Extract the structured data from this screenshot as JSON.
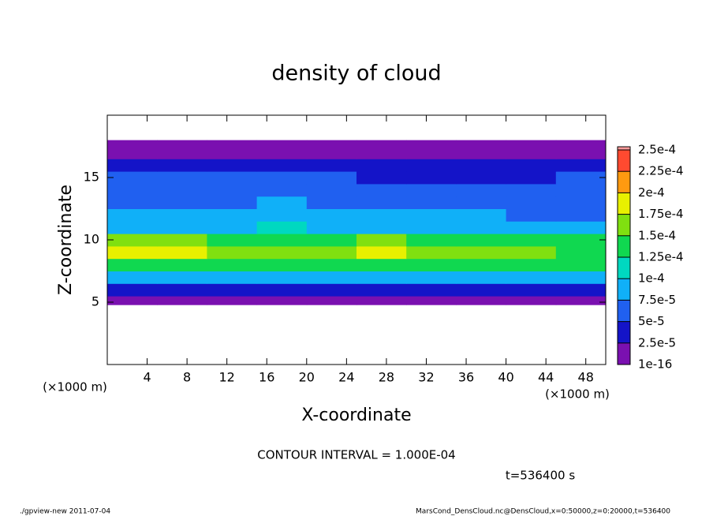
{
  "chart_data": {
    "type": "heatmap",
    "title": "density of cloud",
    "xlabel": "X-coordinate",
    "ylabel": "Z-coordinate",
    "xunits": "(×1000 m)",
    "yunits": "(×1000 m)",
    "annotation": "CONTOUR INTERVAL = 1.000E-04",
    "time_label": "t=536400 s",
    "footer_left": "./gpview-new   2011-07-04",
    "footer_right": "MarsCond_DensCloud.nc@DensCloud,x=0:50000,z=0:20000,t=536400",
    "xlim": [
      0,
      50
    ],
    "ylim": [
      0,
      20
    ],
    "xticks": [
      4,
      8,
      12,
      16,
      20,
      24,
      28,
      32,
      36,
      40,
      44,
      48
    ],
    "yticks": [
      5,
      10,
      15
    ],
    "xbins": [
      0,
      5,
      10,
      15,
      20,
      25,
      30,
      35,
      40,
      45,
      50
    ],
    "ybins": [
      4.8,
      5.5,
      6.5,
      7.5,
      8.5,
      9.5,
      10.5,
      11.5,
      12.5,
      13.5,
      14.5,
      15.5,
      16.5,
      17.5,
      18
    ],
    "values": [
      [
        1e-05,
        1e-05,
        1e-05,
        1e-05,
        1e-05,
        1e-05,
        1e-05,
        1e-05,
        1e-05,
        1e-05
      ],
      [
        4e-05,
        4e-05,
        3.5e-05,
        4e-05,
        4e-05,
        3.5e-05,
        3.5e-05,
        3.5e-05,
        4e-05,
        3e-05
      ],
      [
        9e-05,
        9e-05,
        8.5e-05,
        9e-05,
        9.5e-05,
        9e-05,
        9e-05,
        8.5e-05,
        9e-05,
        8.5e-05
      ],
      [
        0.00014,
        0.00014,
        0.00013,
        0.00013,
        0.000135,
        0.00014,
        0.000135,
        0.00013,
        0.00013,
        0.000125
      ],
      [
        0.00018,
        0.00019,
        0.000155,
        0.00016,
        0.00016,
        0.000175,
        0.000165,
        0.000155,
        0.00015,
        0.000145
      ],
      [
        0.000155,
        0.00016,
        0.000135,
        0.00014,
        0.000135,
        0.00015,
        0.00014,
        0.00013,
        0.00013,
        0.000125
      ],
      [
        9e-05,
        9e-05,
        9e-05,
        0.000105,
        9.5e-05,
        9.5e-05,
        9e-05,
        9e-05,
        8.5e-05,
        8.5e-05
      ],
      [
        8e-05,
        7.5e-05,
        8e-05,
        9e-05,
        8e-05,
        7.5e-05,
        7.5e-05,
        7.5e-05,
        7e-05,
        7e-05
      ],
      [
        7e-05,
        6.5e-05,
        7e-05,
        7.5e-05,
        7e-05,
        6e-05,
        6e-05,
        6e-05,
        5.5e-05,
        6e-05
      ],
      [
        6e-05,
        6e-05,
        6e-05,
        6.5e-05,
        6e-05,
        5.5e-05,
        5e-05,
        5e-05,
        5e-05,
        5.5e-05
      ],
      [
        5e-05,
        5.5e-05,
        5e-05,
        5.5e-05,
        5e-05,
        4.5e-05,
        4.5e-05,
        4.5e-05,
        4.5e-05,
        5e-05
      ],
      [
        3e-05,
        3e-05,
        3e-05,
        3e-05,
        3e-05,
        3e-05,
        3e-05,
        3e-05,
        2.5e-05,
        3e-05
      ],
      [
        1e-05,
        1e-05,
        1e-05,
        1e-05,
        1e-05,
        1e-05,
        1e-05,
        1e-05,
        1e-05,
        1e-05
      ],
      [
        1e-05,
        1e-05,
        1e-05,
        1e-05,
        1e-05,
        1e-05,
        1e-05,
        1e-05,
        1e-05,
        1e-05
      ]
    ],
    "levels": [
      {
        "value": 1e-16,
        "label": "1e-16"
      },
      {
        "value": 2.5e-05,
        "label": "2.5e-5"
      },
      {
        "value": 5e-05,
        "label": "5e-5"
      },
      {
        "value": 7.5e-05,
        "label": "7.5e-5"
      },
      {
        "value": 0.0001,
        "label": "1e-4"
      },
      {
        "value": 0.000125,
        "label": "1.25e-4"
      },
      {
        "value": 0.00015,
        "label": "1.5e-4"
      },
      {
        "value": 0.000175,
        "label": "1.75e-4"
      },
      {
        "value": 0.0002,
        "label": "2e-4"
      },
      {
        "value": 0.000225,
        "label": "2.25e-4"
      },
      {
        "value": 0.00025,
        "label": "2.5e-4"
      }
    ],
    "colors": [
      "#7a10b0",
      "#1414c8",
      "#2060f0",
      "#10b0f8",
      "#00d8c0",
      "#10d850",
      "#80e010",
      "#e8f000",
      "#ff9a10",
      "#ff4a30",
      "#ff9a9a"
    ]
  }
}
